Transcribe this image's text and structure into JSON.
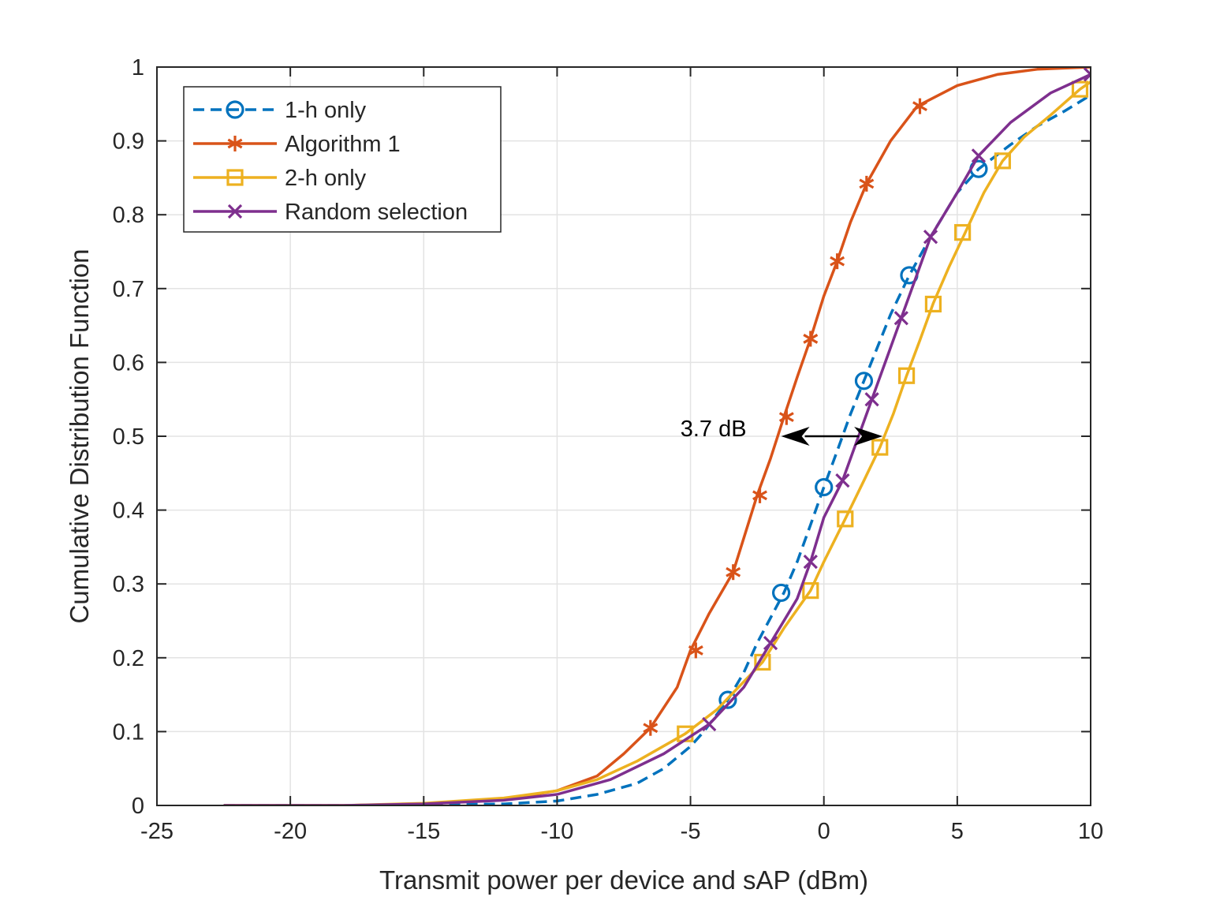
{
  "chart_data": {
    "type": "line",
    "title": "",
    "xlabel": "Transmit power per device and sAP (dBm)",
    "ylabel": "Cumulative Distribution Function",
    "xlim": [
      -25,
      10
    ],
    "ylim": [
      0,
      1
    ],
    "xticks": [
      -25,
      -20,
      -15,
      -10,
      -5,
      0,
      5,
      10
    ],
    "yticks": [
      0,
      0.1,
      0.2,
      0.3,
      0.4,
      0.5,
      0.6,
      0.7,
      0.8,
      0.9,
      1
    ],
    "grid": true,
    "legend_position": "top-left",
    "series": [
      {
        "name": "1-h only",
        "color": "#0072BD",
        "line_style": "dashed",
        "marker": "circle",
        "points": [
          [
            -22.5,
            0
          ],
          [
            -18,
            0
          ],
          [
            -15,
            0.001
          ],
          [
            -12,
            0.002
          ],
          [
            -10,
            0.006
          ],
          [
            -8.5,
            0.015
          ],
          [
            -7,
            0.03
          ],
          [
            -6,
            0.05
          ],
          [
            -5,
            0.08
          ],
          [
            -4.5,
            0.1
          ],
          [
            -3.6,
            0.143
          ],
          [
            -3,
            0.18
          ],
          [
            -2.5,
            0.22
          ],
          [
            -1.5,
            0.288
          ],
          [
            -1,
            0.33
          ],
          [
            -0.5,
            0.38
          ],
          [
            0,
            0.431
          ],
          [
            0.5,
            0.48
          ],
          [
            1,
            0.53
          ],
          [
            1.5,
            0.575
          ],
          [
            2,
            0.62
          ],
          [
            2.5,
            0.665
          ],
          [
            3.2,
            0.718
          ],
          [
            4,
            0.77
          ],
          [
            5,
            0.83
          ],
          [
            5.8,
            0.862
          ],
          [
            7,
            0.895
          ],
          [
            8,
            0.92
          ],
          [
            9,
            0.94
          ],
          [
            10,
            0.962
          ]
        ],
        "markers": [
          [
            -3.6,
            0.143
          ],
          [
            -1.6,
            0.288
          ],
          [
            0,
            0.431
          ],
          [
            1.5,
            0.575
          ],
          [
            3.2,
            0.718
          ],
          [
            5.8,
            0.862
          ]
        ]
      },
      {
        "name": "Algorithm 1",
        "color": "#D95319",
        "line_style": "solid",
        "marker": "asterisk",
        "points": [
          [
            -22.5,
            0
          ],
          [
            -18,
            0
          ],
          [
            -15,
            0.002
          ],
          [
            -12,
            0.008
          ],
          [
            -10,
            0.02
          ],
          [
            -8.5,
            0.04
          ],
          [
            -7.5,
            0.07
          ],
          [
            -6.5,
            0.105
          ],
          [
            -5.5,
            0.16
          ],
          [
            -5,
            0.21
          ],
          [
            -4.3,
            0.26
          ],
          [
            -3.4,
            0.316
          ],
          [
            -2.5,
            0.42
          ],
          [
            -2,
            0.47
          ],
          [
            -1.5,
            0.526
          ],
          [
            -1,
            0.58
          ],
          [
            -0.5,
            0.632
          ],
          [
            0,
            0.69
          ],
          [
            0.5,
            0.737
          ],
          [
            1,
            0.79
          ],
          [
            1.6,
            0.842
          ],
          [
            2.5,
            0.9
          ],
          [
            3.5,
            0.947
          ],
          [
            5,
            0.975
          ],
          [
            6.5,
            0.99
          ],
          [
            8,
            0.997
          ],
          [
            10,
            1.0
          ]
        ],
        "markers": [
          [
            -6.5,
            0.105
          ],
          [
            -4.8,
            0.21
          ],
          [
            -3.4,
            0.316
          ],
          [
            -2.4,
            0.42
          ],
          [
            -1.4,
            0.526
          ],
          [
            -0.5,
            0.632
          ],
          [
            0.5,
            0.737
          ],
          [
            1.6,
            0.842
          ],
          [
            3.6,
            0.947
          ]
        ]
      },
      {
        "name": "2-h only",
        "color": "#EDB120",
        "line_style": "solid",
        "marker": "square",
        "points": [
          [
            -22.5,
            0
          ],
          [
            -18,
            0
          ],
          [
            -15,
            0.003
          ],
          [
            -12,
            0.01
          ],
          [
            -10,
            0.02
          ],
          [
            -8.5,
            0.035
          ],
          [
            -7,
            0.06
          ],
          [
            -5.2,
            0.097
          ],
          [
            -4,
            0.13
          ],
          [
            -2.3,
            0.194
          ],
          [
            -1.5,
            0.24
          ],
          [
            -0.5,
            0.291
          ],
          [
            0,
            0.33
          ],
          [
            0.8,
            0.388
          ],
          [
            1.5,
            0.44
          ],
          [
            2.1,
            0.485
          ],
          [
            2.6,
            0.53
          ],
          [
            3.1,
            0.582
          ],
          [
            3.6,
            0.63
          ],
          [
            4.1,
            0.68
          ],
          [
            4.7,
            0.73
          ],
          [
            5.3,
            0.776
          ],
          [
            6,
            0.83
          ],
          [
            6.7,
            0.873
          ],
          [
            7.5,
            0.905
          ],
          [
            8.5,
            0.935
          ],
          [
            9.6,
            0.97
          ],
          [
            10,
            0.98
          ]
        ],
        "markers": [
          [
            -5.2,
            0.097
          ],
          [
            -2.3,
            0.194
          ],
          [
            -0.5,
            0.291
          ],
          [
            0.8,
            0.388
          ],
          [
            2.1,
            0.485
          ],
          [
            3.1,
            0.582
          ],
          [
            4.1,
            0.679
          ],
          [
            5.2,
            0.776
          ],
          [
            6.7,
            0.873
          ],
          [
            9.6,
            0.97
          ]
        ]
      },
      {
        "name": "Random selection",
        "color": "#7E2F8E",
        "line_style": "solid",
        "marker": "x",
        "points": [
          [
            -22.5,
            0
          ],
          [
            -18,
            0
          ],
          [
            -15,
            0.002
          ],
          [
            -12,
            0.007
          ],
          [
            -10,
            0.015
          ],
          [
            -8,
            0.035
          ],
          [
            -6,
            0.07
          ],
          [
            -4.3,
            0.11
          ],
          [
            -3,
            0.16
          ],
          [
            -2,
            0.22
          ],
          [
            -1,
            0.28
          ],
          [
            -0.5,
            0.33
          ],
          [
            0,
            0.39
          ],
          [
            0.7,
            0.44
          ],
          [
            1.3,
            0.5
          ],
          [
            1.8,
            0.55
          ],
          [
            2.4,
            0.61
          ],
          [
            2.9,
            0.66
          ],
          [
            3.5,
            0.72
          ],
          [
            4,
            0.77
          ],
          [
            5,
            0.83
          ],
          [
            5.8,
            0.88
          ],
          [
            7,
            0.925
          ],
          [
            8.5,
            0.965
          ],
          [
            10,
            0.99
          ]
        ],
        "markers": [
          [
            -4.3,
            0.11
          ],
          [
            -2,
            0.22
          ],
          [
            -0.5,
            0.33
          ],
          [
            0.7,
            0.44
          ],
          [
            1.8,
            0.55
          ],
          [
            2.9,
            0.66
          ],
          [
            4,
            0.77
          ],
          [
            5.8,
            0.88
          ],
          [
            10,
            0.99
          ]
        ]
      }
    ],
    "annotations": [
      {
        "text": "3.7 dB",
        "arrow_from": [
          -1.6,
          0.5
        ],
        "arrow_to": [
          2.2,
          0.5
        ]
      }
    ]
  }
}
